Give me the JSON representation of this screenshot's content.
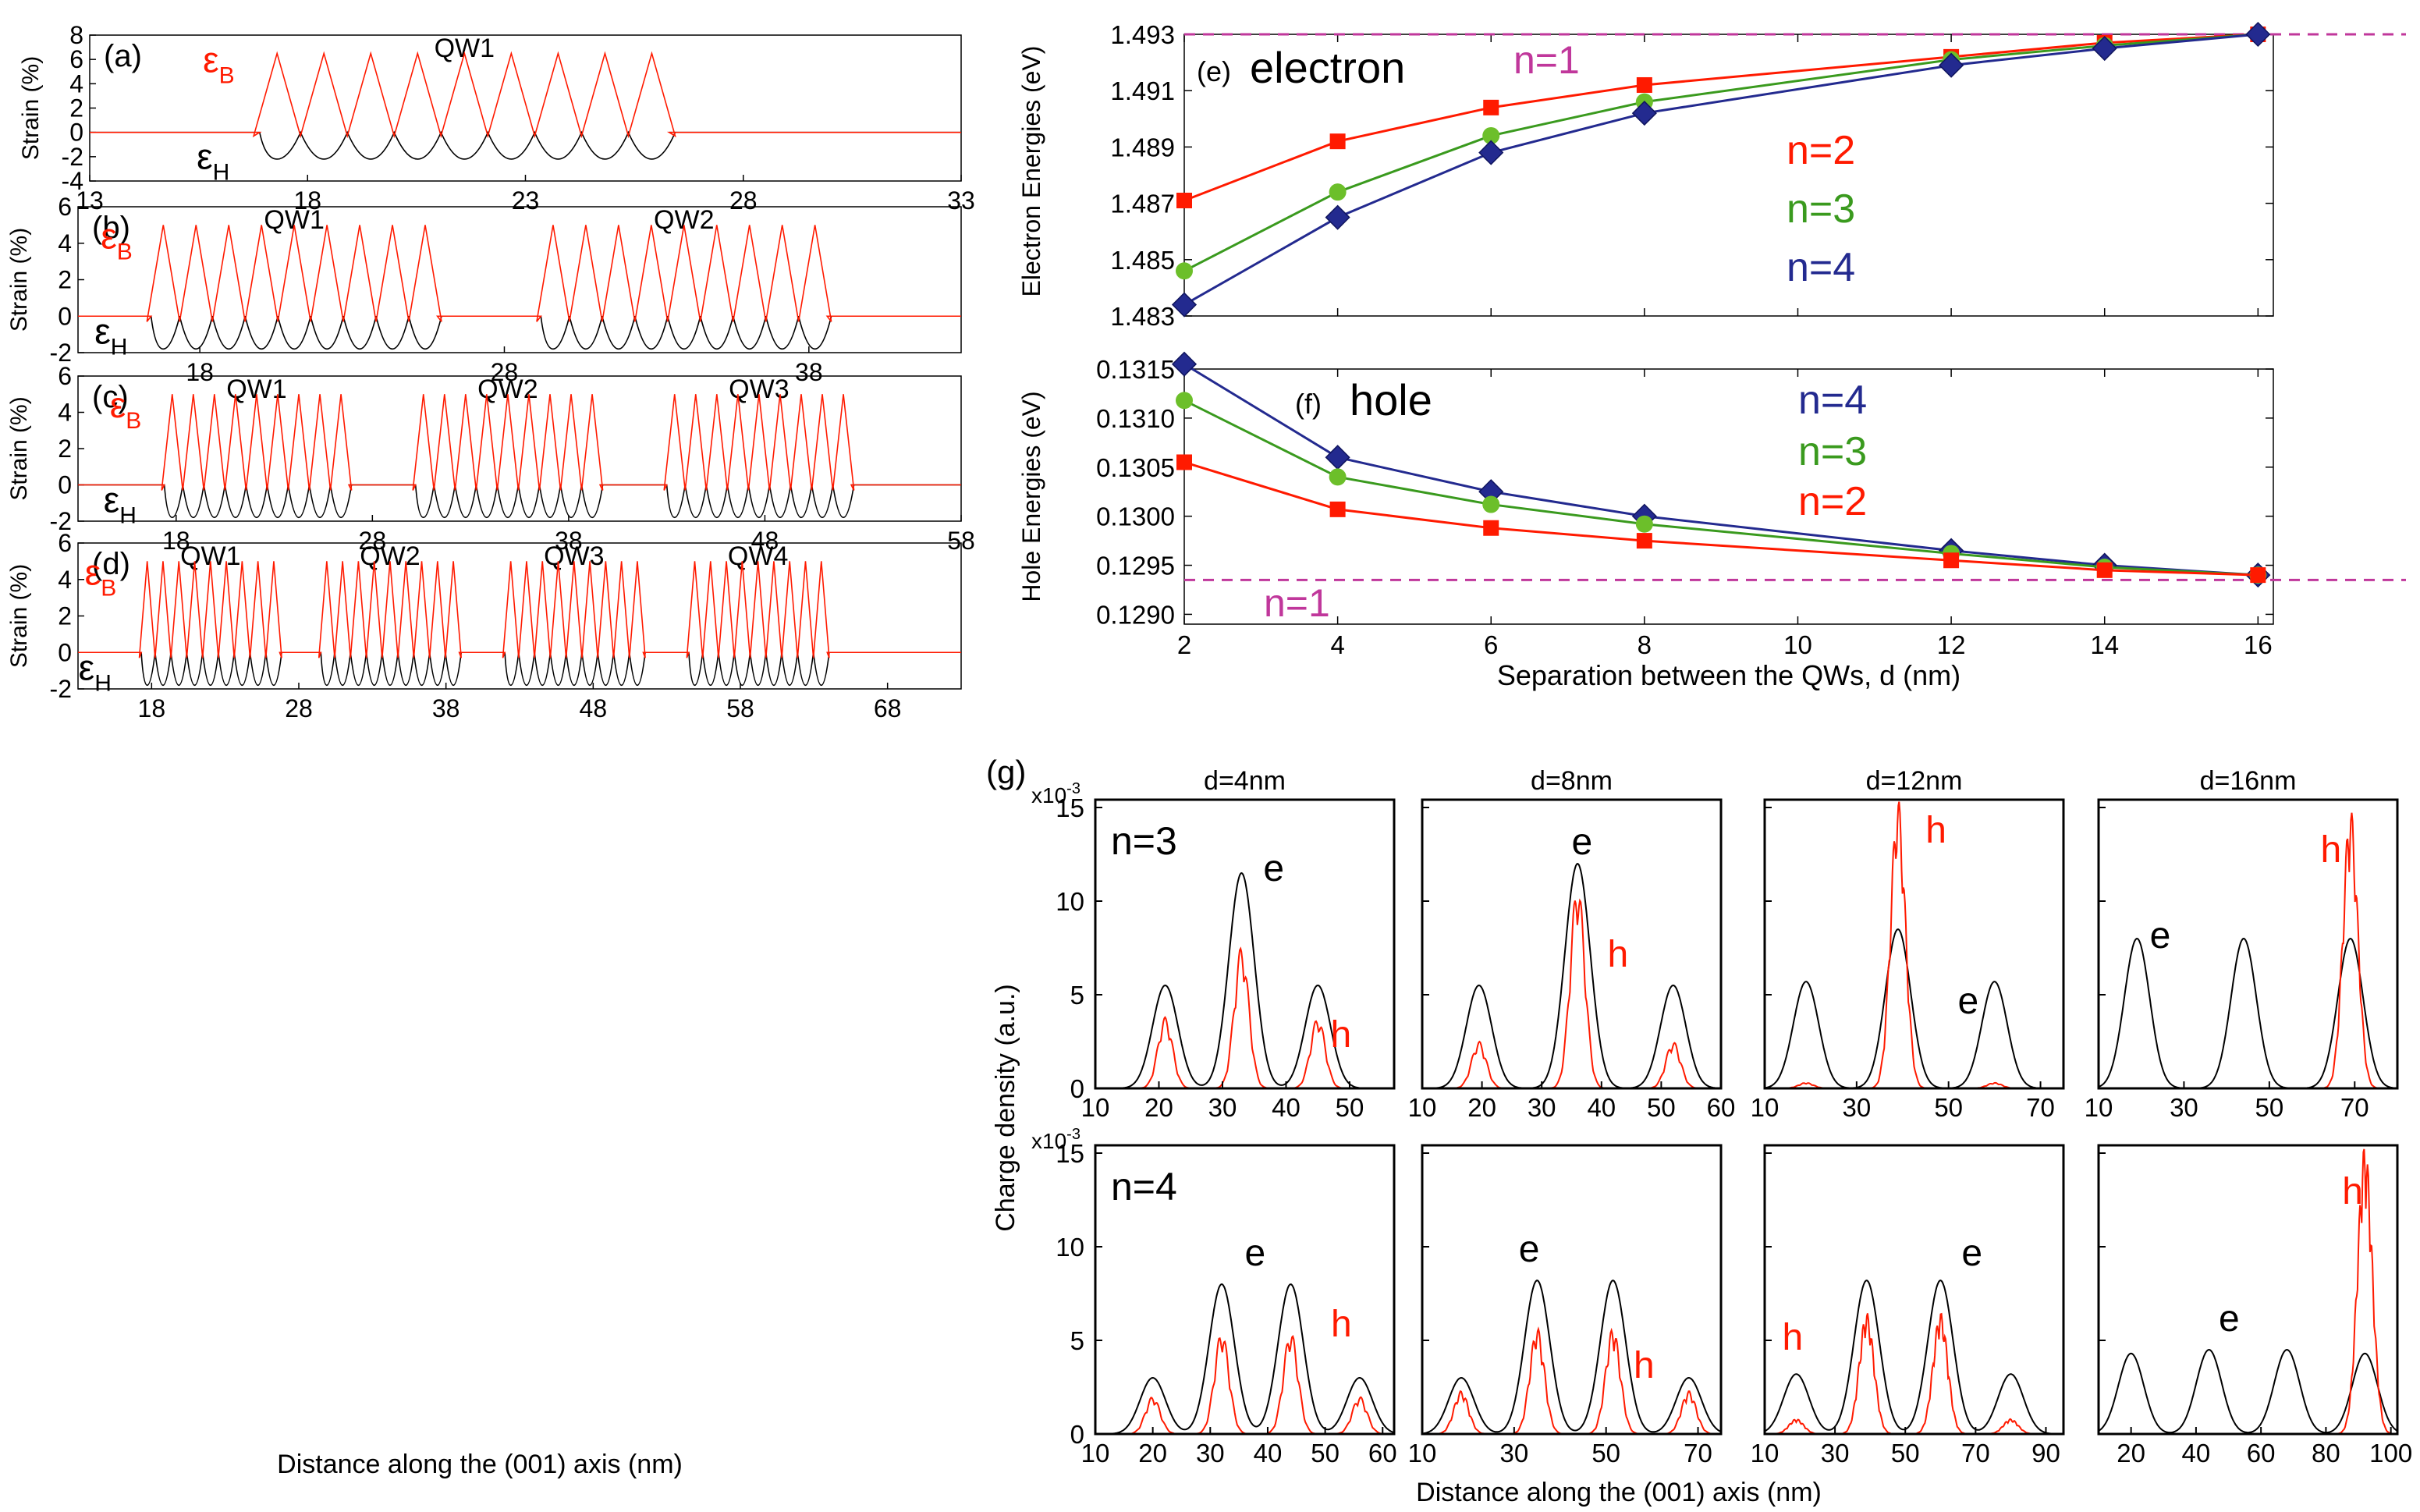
{
  "figure": {
    "colors": {
      "black": "#000000",
      "red": "#ff1a00",
      "green": "#3a9a1e",
      "green_marker": "#6cbf2a",
      "navy": "#232a8f",
      "magenta": "#c0379b"
    },
    "shared_xlabel_left": "Distance along the (001) axis (nm)",
    "shared_xlabel_g": "Distance along the (001) axis (nm)",
    "g_ylabel": "Charge density (a.u.)"
  },
  "strain_panels": [
    {
      "id": "a",
      "label": "(a)",
      "ylabel": "Strain (%)",
      "xlim": [
        13,
        33
      ],
      "ylim": [
        -4,
        8
      ],
      "xticks": [
        13,
        18,
        23,
        28,
        33
      ],
      "yticks": [
        -4,
        -2,
        0,
        2,
        4,
        6,
        8
      ],
      "qw_labels": [
        "QW1"
      ],
      "qw_ranges": [
        [
          17.3,
          25.9
        ]
      ],
      "peak_b": 6.5,
      "peak_h": -2.2,
      "eps_b": "ε",
      "eps_b_sub": "B",
      "eps_h": "ε",
      "eps_h_sub": "H"
    },
    {
      "id": "b",
      "label": "(b)",
      "ylabel": "Strain (%)",
      "xlim": [
        14,
        43
      ],
      "ylim": [
        -2,
        6
      ],
      "xticks": [
        18,
        28,
        38
      ],
      "yticks": [
        -2,
        0,
        2,
        4,
        6
      ],
      "qw_labels": [
        "QW1",
        "QW2"
      ],
      "qw_ranges": [
        [
          16.8,
          25.4
        ],
        [
          29.6,
          38.2
        ]
      ],
      "peak_b": 5,
      "peak_h": -1.8,
      "eps_b": "ε",
      "eps_b_sub": "B",
      "eps_h": "ε",
      "eps_h_sub": "H"
    },
    {
      "id": "c",
      "label": "(c)",
      "ylabel": "Strain (%)",
      "xlim": [
        13,
        58
      ],
      "ylim": [
        -2,
        6
      ],
      "xticks": [
        18,
        28,
        38,
        48,
        58
      ],
      "yticks": [
        -2,
        0,
        2,
        4,
        6
      ],
      "qw_labels": [
        "QW1",
        "QW2",
        "QW3"
      ],
      "qw_ranges": [
        [
          17.8,
          26.4
        ],
        [
          30.6,
          39.2
        ],
        [
          43.4,
          52
        ]
      ],
      "peak_b": 5,
      "peak_h": -1.8,
      "eps_b": "ε",
      "eps_b_sub": "B",
      "eps_h": "ε",
      "eps_h_sub": "H"
    },
    {
      "id": "d",
      "label": "(d)",
      "ylabel": "Strain (%)",
      "xlim": [
        13,
        73
      ],
      "ylim": [
        -2,
        6
      ],
      "xticks": [
        18,
        28,
        38,
        48,
        58,
        68
      ],
      "yticks": [
        -2,
        0,
        2,
        4,
        6
      ],
      "qw_labels": [
        "QW1",
        "QW2",
        "QW3",
        "QW4"
      ],
      "qw_ranges": [
        [
          17.7,
          26.3
        ],
        [
          29.9,
          38.5
        ],
        [
          42.4,
          51
        ],
        [
          54.9,
          63.5
        ]
      ],
      "peak_b": 5,
      "peak_h": -1.8,
      "eps_b": "ε",
      "eps_b_sub": "B",
      "eps_h": "ε",
      "eps_h_sub": "H"
    }
  ],
  "chart_data": [
    {
      "type": "line",
      "panel": "e",
      "title": "(e) electron",
      "ylabel": "Electron Energies  (eV)",
      "xlim": [
        2,
        16.2
      ],
      "ylim": [
        1.483,
        1.493
      ],
      "yticks": [
        1.483,
        1.485,
        1.487,
        1.489,
        1.491,
        1.493
      ],
      "yticklabels": [
        "1.483",
        "1.485",
        "1.487",
        "1.489",
        "1.491",
        "1.493"
      ],
      "ref_line": {
        "label": "n=1",
        "y": 1.493
      },
      "series": [
        {
          "name": "n=2",
          "marker": "square",
          "x": [
            2,
            4,
            6,
            8,
            12,
            14,
            16
          ],
          "y": [
            1.4871,
            1.4892,
            1.4904,
            1.4912,
            1.4922,
            1.4927,
            1.493
          ]
        },
        {
          "name": "n=3",
          "marker": "circle",
          "x": [
            2,
            4,
            6,
            8,
            12,
            14,
            16
          ],
          "y": [
            1.4846,
            1.4874,
            1.4894,
            1.4906,
            1.4921,
            1.4926,
            1.493
          ]
        },
        {
          "name": "n=4",
          "marker": "diamond",
          "x": [
            2,
            4,
            6,
            8,
            12,
            14,
            16
          ],
          "y": [
            1.4834,
            1.4865,
            1.4888,
            1.4902,
            1.4919,
            1.4925,
            1.493
          ]
        }
      ]
    },
    {
      "type": "line",
      "panel": "f",
      "title": "(f) hole",
      "ylabel": "Hole Energies  (eV)",
      "xlabel": "Separation between the QWs, d (nm)",
      "xlim": [
        2,
        16.2
      ],
      "ylim": [
        0.1289,
        0.1315
      ],
      "xticks": [
        2,
        4,
        6,
        8,
        10,
        12,
        14,
        16
      ],
      "yticks": [
        0.129,
        0.1295,
        0.13,
        0.1305,
        0.131,
        0.1315
      ],
      "yticklabels": [
        "0.1290",
        "0.1295",
        "0.1300",
        "0.1305",
        "0.1310",
        "0.1315"
      ],
      "ref_line": {
        "label": "n=1",
        "y": 0.12935
      },
      "series": [
        {
          "name": "n=4",
          "marker": "diamond",
          "x": [
            2,
            4,
            6,
            8,
            12,
            14,
            16
          ],
          "y": [
            0.13155,
            0.1306,
            0.13025,
            0.13,
            0.12965,
            0.1295,
            0.1294
          ]
        },
        {
          "name": "n=3",
          "marker": "circle",
          "x": [
            2,
            4,
            6,
            8,
            12,
            14,
            16
          ],
          "y": [
            0.13118,
            0.1304,
            0.13012,
            0.12992,
            0.12962,
            0.12948,
            0.1294
          ]
        },
        {
          "name": "n=2",
          "marker": "square",
          "x": [
            2,
            4,
            6,
            8,
            12,
            14,
            16
          ],
          "y": [
            0.13055,
            0.13007,
            0.12988,
            0.12975,
            0.12955,
            0.12945,
            0.1294
          ]
        }
      ]
    },
    {
      "type": "line",
      "panel": "g",
      "title": "(g)",
      "ylim": [
        0,
        15
      ],
      "yticks": [
        0,
        5,
        10,
        15
      ],
      "exponent": "x10",
      "exponent_sup": "-3",
      "columns": [
        "d=4nm",
        "d=8nm",
        "d=12nm",
        "d=16nm"
      ],
      "rows": [
        {
          "label": "n=3",
          "plots": [
            {
              "xlim": [
                10,
                57
              ],
              "xticks": [
                10,
                20,
                30,
                40,
                50
              ],
              "e_peaks": [
                [
                  21,
                  5.5
                ],
                [
                  33,
                  11.5
                ],
                [
                  45,
                  5.5
                ]
              ],
              "h_peaks": [
                [
                  21,
                  3.8
                ],
                [
                  33,
                  7.6
                ],
                [
                  45,
                  3.8
                ]
              ],
              "e_label": "e",
              "h_label": "h"
            },
            {
              "xlim": [
                10,
                60
              ],
              "xticks": [
                10,
                20,
                30,
                40,
                50,
                60
              ],
              "e_peaks": [
                [
                  19.5,
                  5.5
                ],
                [
                  36,
                  12
                ],
                [
                  52,
                  5.5
                ]
              ],
              "h_peaks": [
                [
                  19.5,
                  2.5
                ],
                [
                  36,
                  11
                ],
                [
                  52,
                  2.5
                ]
              ],
              "e_label": "e",
              "h_label": "h"
            },
            {
              "xlim": [
                10,
                75
              ],
              "xticks": [
                10,
                30,
                50,
                70
              ],
              "e_peaks": [
                [
                  19,
                  5.7
                ],
                [
                  39,
                  8.5
                ],
                [
                  60,
                  5.7
                ]
              ],
              "h_peaks": [
                [
                  19,
                  0.3
                ],
                [
                  39,
                  15.5
                ],
                [
                  60,
                  0.3
                ]
              ],
              "e_label": "e",
              "h_label": "h"
            },
            {
              "xlim": [
                10,
                80
              ],
              "xticks": [
                10,
                30,
                50,
                70
              ],
              "e_peaks": [
                [
                  19,
                  8
                ],
                [
                  44,
                  8
                ],
                [
                  69,
                  8
                ]
              ],
              "h_peaks": [
                [
                  19,
                  0
                ],
                [
                  44,
                  0
                ],
                [
                  69,
                  15
                ]
              ],
              "e_label": "e",
              "h_label": "h"
            }
          ]
        },
        {
          "label": "n=4",
          "plots": [
            {
              "xlim": [
                10,
                62
              ],
              "xticks": [
                10,
                20,
                30,
                40,
                50,
                60
              ],
              "e_peaks": [
                [
                  20,
                  3
                ],
                [
                  32,
                  8
                ],
                [
                  44,
                  8
                ],
                [
                  56,
                  3
                ]
              ],
              "h_peaks": [
                [
                  20,
                  2
                ],
                [
                  32,
                  5.5
                ],
                [
                  44,
                  5.5
                ],
                [
                  56,
                  2
                ]
              ],
              "e_label": "e",
              "h_label": "h"
            },
            {
              "xlim": [
                10,
                75
              ],
              "xticks": [
                10,
                30,
                50,
                70
              ],
              "e_peaks": [
                [
                  18.5,
                  3
                ],
                [
                  35,
                  8.2
                ],
                [
                  51.5,
                  8.2
                ],
                [
                  68,
                  3
                ]
              ],
              "h_peaks": [
                [
                  18.5,
                  2.3
                ],
                [
                  35,
                  5.7
                ],
                [
                  51.5,
                  5.7
                ],
                [
                  68,
                  2.3
                ]
              ],
              "e_label": "e",
              "h_label": "h"
            },
            {
              "xlim": [
                10,
                95
              ],
              "xticks": [
                10,
                30,
                50,
                70,
                90
              ],
              "e_peaks": [
                [
                  19,
                  3.2
                ],
                [
                  39,
                  8.2
                ],
                [
                  60,
                  8.2
                ],
                [
                  80,
                  3.2
                ]
              ],
              "h_peaks": [
                [
                  19,
                  0.8
                ],
                [
                  39,
                  6.5
                ],
                [
                  60,
                  6.5
                ],
                [
                  80,
                  0.8
                ]
              ],
              "e_label": "e",
              "h_label": "h"
            },
            {
              "xlim": [
                10,
                102
              ],
              "xticks": [
                20,
                40,
                60,
                80,
                100
              ],
              "e_peaks": [
                [
                  20,
                  4.3
                ],
                [
                  44,
                  4.5
                ],
                [
                  68,
                  4.5
                ],
                [
                  92,
                  4.3
                ]
              ],
              "h_peaks": [
                [
                  20,
                  0
                ],
                [
                  44,
                  0
                ],
                [
                  68,
                  0
                ],
                [
                  92,
                  15.5
                ]
              ],
              "e_label": "e",
              "h_label": "h"
            }
          ]
        }
      ]
    }
  ]
}
